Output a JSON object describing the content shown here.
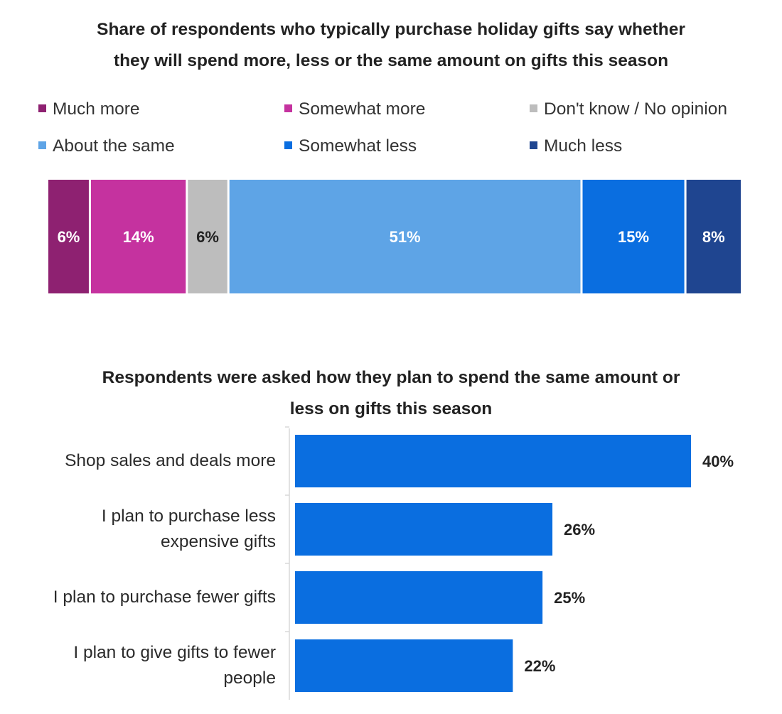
{
  "chart_data": [
    {
      "type": "bar",
      "orientation": "horizontal-stacked",
      "title_lines": [
        "Share of respondents who typically purchase holiday gifts say whether",
        "they will spend more, less or the same amount on gifts this season"
      ],
      "legend": [
        {
          "name": "Much more",
          "color": "#8e2171"
        },
        {
          "name": "Somewhat more",
          "color": "#c5329f"
        },
        {
          "name": "Don't know / No opinion",
          "color": "#bdbdbd"
        },
        {
          "name": "About the same",
          "color": "#5ea4e6"
        },
        {
          "name": "Somewhat less",
          "color": "#0a6ee0"
        },
        {
          "name": "Much less",
          "color": "#1f4590"
        }
      ],
      "series": [
        {
          "name": "Much more",
          "value": 6,
          "label": "6%",
          "color": "#8e2171",
          "text_color": "#ffffff"
        },
        {
          "name": "Somewhat more",
          "value": 14,
          "label": "14%",
          "color": "#c5329f",
          "text_color": "#ffffff"
        },
        {
          "name": "Don't know / No opinion",
          "value": 6,
          "label": "6%",
          "color": "#bdbdbd",
          "text_color": "#222222"
        },
        {
          "name": "About the same",
          "value": 51,
          "label": "51%",
          "color": "#5ea4e6",
          "text_color": "#ffffff"
        },
        {
          "name": "Somewhat less",
          "value": 15,
          "label": "15%",
          "color": "#0a6ee0",
          "text_color": "#ffffff"
        },
        {
          "name": "Much less",
          "value": 8,
          "label": "8%",
          "color": "#1f4590",
          "text_color": "#ffffff"
        }
      ],
      "unit": "%"
    },
    {
      "type": "bar",
      "orientation": "horizontal",
      "title_lines": [
        "Respondents were asked how they plan to spend the same amount or",
        "less on gifts this season"
      ],
      "categories": [
        [
          "Shop sales and deals more"
        ],
        [
          "I plan to purchase less",
          "expensive gifts"
        ],
        [
          "I plan to purchase fewer gifts"
        ],
        [
          "I plan to give gifts to fewer",
          "people"
        ]
      ],
      "values": [
        40,
        26,
        25,
        22
      ],
      "value_labels": [
        "40%",
        "26%",
        "25%",
        "22%"
      ],
      "bar_color": "#0a6ee0",
      "xlim": [
        0,
        40
      ],
      "unit": "%"
    }
  ]
}
